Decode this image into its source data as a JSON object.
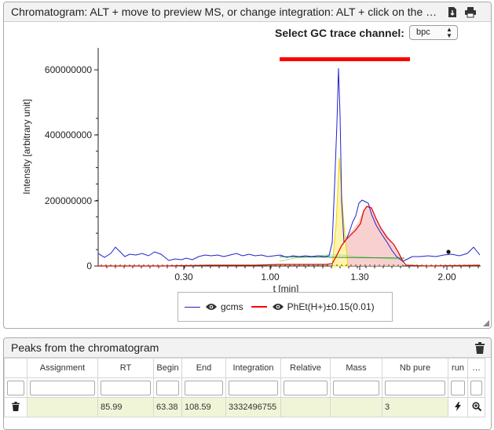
{
  "chromatogram": {
    "title": "Chromatogram: ALT + move to preview MS, or change integration: ALT + click on the left an…",
    "select_label": "Select GC trace channel:",
    "select_value": "bpc",
    "ylabel": "Intensity [arbitrary unit]",
    "xlabel": "t [min]",
    "y_ticks": [
      "600000000",
      "400000000",
      "200000000",
      "0"
    ],
    "x_ticks": [
      "0.30",
      "1.00",
      "1.30",
      "2.00"
    ],
    "legend": [
      {
        "name": "gcms",
        "color": "#2222cc"
      },
      {
        "name": "PhEt(H+)±0.15(0.01)",
        "color": "#ff0000"
      }
    ]
  },
  "peaks": {
    "title": "Peaks from the chromatogram",
    "columns": [
      "",
      "Assignment",
      "RT",
      "Begin",
      "End",
      "Integration",
      "Relative",
      "Mass",
      "Nb pure",
      "run",
      "…"
    ],
    "rows": [
      {
        "assignment": "",
        "rt": "85.99",
        "begin": "63.38",
        "end": "108.59",
        "integration": "3332496755",
        "relative": "",
        "mass": "",
        "nb_pure": "3"
      }
    ]
  },
  "colors": {
    "accent_red": "#ff0000",
    "trace_blue": "#2222cc",
    "row_highlight": "#f1f5d8"
  }
}
